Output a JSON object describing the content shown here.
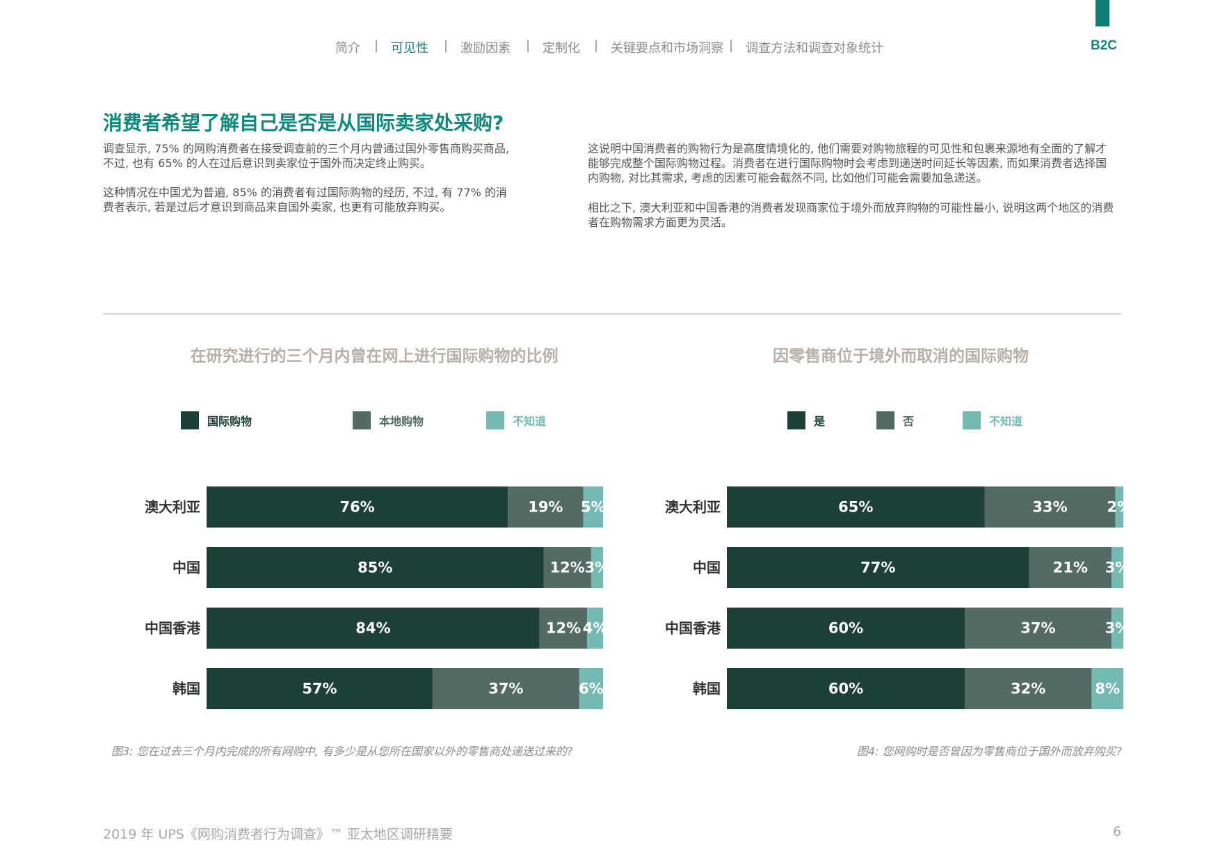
{
  "nav": {
    "items": [
      "简介",
      "可见性",
      "激励因素",
      "定制化",
      "关键要点和市场洞察",
      "调查方法和调查对象统计"
    ],
    "active_index": 1,
    "separator": "|"
  },
  "badge": "B2C",
  "headline": "消费者希望了解自己是否是从国际卖家处采购?",
  "paragraphs": [
    "调查显示, 75% 的网购消费者在接受调查前的三个月内曾通过国外零售商购买商品, 不过, 也有 65% 的人在过后意识到卖家位于国外而决定终止购买。",
    "这种情况在中国尤为普遍, 85% 的消费者有过国际购物的经历, 不过, 有 77% 的消费者表示, 若是过后才意识到商品来自国外卖家, 也更有可能放弃购买。",
    "这说明中国消费者的购物行为是高度情境化的, 他们需要对购物旅程的可见性和包裹来源地有全面的了解才能够完成整个国际购物过程。消费者在进行国际购物时会考虑到递送时间延长等因素, 而如果消费者选择国内购物, 对比其需求, 考虑的因素可能会截然不同, 比如他们可能会需要加急递送。",
    "相比之下, 澳大利亚和中国香港的消费者发现商家位于境外而放弃购物的可能性最小, 说明这两个地区的消费者在购物需求方面更为灵活。"
  ],
  "colors": {
    "accent": "#0d8a7e",
    "series_dark": "#1c3f38",
    "series_mid": "#546b65",
    "series_light": "#74bab3"
  },
  "chart_data": [
    {
      "type": "bar",
      "stacked": true,
      "orientation": "horizontal",
      "title": "在研究进行的三个月内曾在网上进行国际购物的比例",
      "categories": [
        "澳大利亚",
        "中国",
        "中国香港",
        "韩国"
      ],
      "series": [
        {
          "name": "国际购物",
          "color": "#1c3f38",
          "values": [
            76,
            85,
            84,
            57
          ]
        },
        {
          "name": "本地购物",
          "color": "#546b65",
          "values": [
            19,
            12,
            12,
            37
          ]
        },
        {
          "name": "不知道",
          "color": "#74bab3",
          "values": [
            5,
            3,
            4,
            6
          ]
        }
      ],
      "unit": "%",
      "legend": "top",
      "caption": "图3: 您在过去三个月内完成的所有网购中, 有多少是从您所在国家以外的零售商处递送过来的?"
    },
    {
      "type": "bar",
      "stacked": true,
      "orientation": "horizontal",
      "title": "因零售商位于境外而取消的国际购物",
      "categories": [
        "澳大利亚",
        "中国",
        "中国香港",
        "韩国"
      ],
      "series": [
        {
          "name": "是",
          "color": "#1c3f38",
          "values": [
            65,
            77,
            60,
            60
          ]
        },
        {
          "name": "否",
          "color": "#546b65",
          "values": [
            33,
            21,
            37,
            32
          ]
        },
        {
          "name": "不知道",
          "color": "#74bab3",
          "values": [
            2,
            3,
            3,
            8
          ]
        }
      ],
      "unit": "%",
      "legend": "top",
      "caption": "图4: 您网购时是否曾因为零售商位于国外而放弃购买?"
    }
  ],
  "footer": "2019 年 UPS《网购消费者行为调查》™ 亚太地区调研精要",
  "page_number": "6"
}
